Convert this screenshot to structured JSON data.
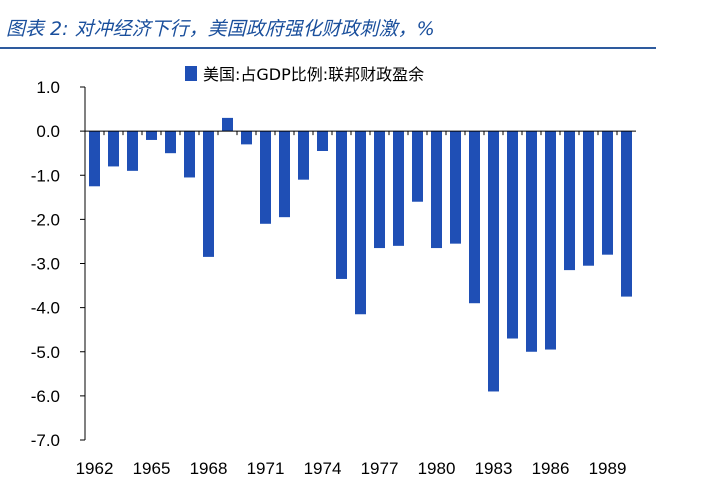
{
  "title": "图表 2: 对冲经济下行，美国政府强化财政刺激，%",
  "chart_data": {
    "type": "bar",
    "categories": [
      "1962",
      "1963",
      "1964",
      "1965",
      "1966",
      "1967",
      "1968",
      "1969",
      "1970",
      "1971",
      "1972",
      "1973",
      "1974",
      "1975",
      "1976",
      "1977",
      "1978",
      "1979",
      "1980",
      "1981",
      "1982",
      "1983",
      "1984",
      "1985",
      "1986",
      "1987",
      "1988",
      "1989",
      "1990"
    ],
    "xtick_labels": [
      "1962",
      "1965",
      "1968",
      "1971",
      "1974",
      "1977",
      "1980",
      "1983",
      "1986",
      "1989"
    ],
    "series": [
      {
        "name": "美国:占GDP比例:联邦财政盈余",
        "color": "#1f4fb5",
        "values": [
          -1.25,
          -0.8,
          -0.9,
          -0.2,
          -0.5,
          -1.05,
          -2.85,
          0.3,
          -0.3,
          -2.1,
          -1.95,
          -1.1,
          -0.45,
          -3.35,
          -4.15,
          -2.65,
          -2.6,
          -1.6,
          -2.65,
          -2.55,
          -3.9,
          -5.9,
          -4.7,
          -5.0,
          -4.95,
          -3.15,
          -3.05,
          -2.8,
          -3.75
        ]
      }
    ],
    "ylim": [
      -7.0,
      1.0
    ],
    "yticks": [
      "1.0",
      "0.0",
      "-1.0",
      "-2.0",
      "-3.0",
      "-4.0",
      "-5.0",
      "-6.0",
      "-7.0"
    ],
    "legend_position": "top",
    "grid": false
  }
}
